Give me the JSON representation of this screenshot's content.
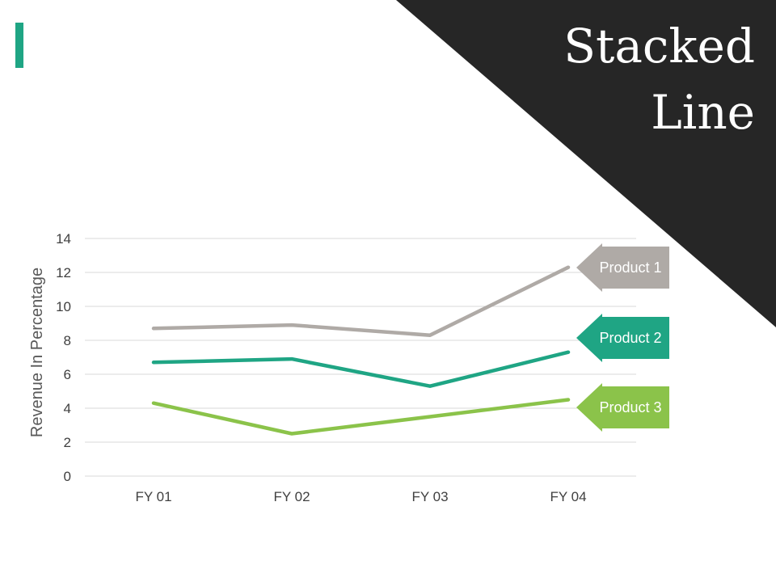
{
  "slide": {
    "title_line1": "Stacked",
    "title_line2": "Line"
  },
  "colors": {
    "corner": "#262626",
    "accent": "#1fa584",
    "grid": "#d9d9d9"
  },
  "chart_data": {
    "type": "line",
    "categories": [
      "FY 01",
      "FY 02",
      "FY 03",
      "FY 04"
    ],
    "ylabel": "Revenue In Percentage",
    "xlabel": "",
    "ylim": [
      0,
      14
    ],
    "yticks": [
      0,
      2,
      4,
      6,
      8,
      10,
      12,
      14
    ],
    "grid": true,
    "legend": "callouts-right",
    "series": [
      {
        "name": "Product 1",
        "values": [
          8.7,
          8.9,
          8.3,
          12.3
        ],
        "color": "#afaaa6"
      },
      {
        "name": "Product 2",
        "values": [
          6.7,
          6.9,
          5.3,
          7.3
        ],
        "color": "#1fa584"
      },
      {
        "name": "Product 3",
        "values": [
          4.3,
          2.5,
          3.5,
          4.5
        ],
        "color": "#8bc34a"
      }
    ]
  }
}
